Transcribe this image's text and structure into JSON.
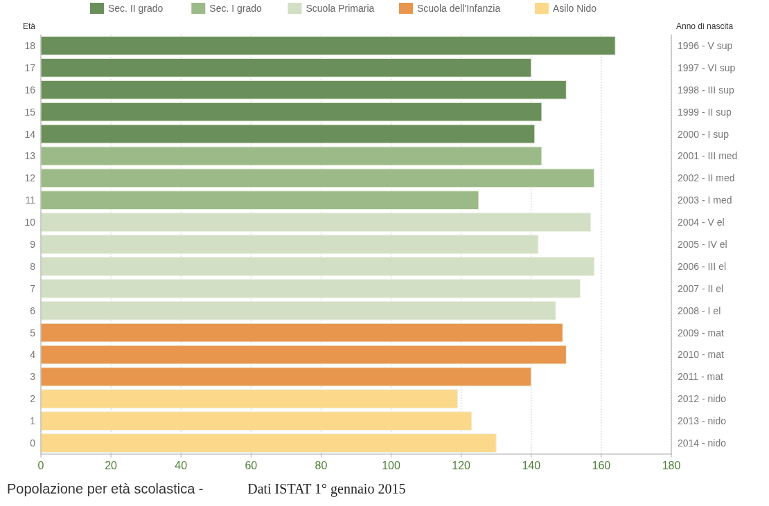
{
  "chart_data": {
    "type": "bar",
    "orientation": "horizontal",
    "title": "Popolazione per età scolastica -",
    "ylabel": "Età",
    "y2label": "Anno di nascita",
    "categories": [
      "18",
      "17",
      "16",
      "15",
      "14",
      "13",
      "12",
      "11",
      "10",
      "9",
      "8",
      "7",
      "6",
      "5",
      "4",
      "3",
      "2",
      "1",
      "0"
    ],
    "y2_categories": [
      "1996 - V sup",
      "1997 - VI sup",
      "1998 - III sup",
      "1999 - II sup",
      "2000 - I sup",
      "2001 - III med",
      "2002 - II med",
      "2003 - I med",
      "2004 - V el",
      "2005 - IV el",
      "2006 - III el",
      "2007 - II el",
      "2008 - I el",
      "2009 - mat",
      "2010 - mat",
      "2011 - mat",
      "2012 - nido",
      "2013 - nido",
      "2014 - nido"
    ],
    "series": [
      {
        "name": "Sec. II grado",
        "color": "#6b8f5a",
        "values": [
          164,
          140,
          150,
          143,
          141,
          null,
          null,
          null,
          null,
          null,
          null,
          null,
          null,
          null,
          null,
          null,
          null,
          null,
          null
        ]
      },
      {
        "name": "Sec. I grado",
        "color": "#9cba88",
        "values": [
          null,
          null,
          null,
          null,
          null,
          143,
          158,
          125,
          null,
          null,
          null,
          null,
          null,
          null,
          null,
          null,
          null,
          null,
          null
        ]
      },
      {
        "name": "Scuola Primaria",
        "color": "#d2dfc5",
        "values": [
          null,
          null,
          null,
          null,
          null,
          null,
          null,
          null,
          157,
          142,
          158,
          154,
          147,
          null,
          null,
          null,
          null,
          null,
          null
        ]
      },
      {
        "name": "Scuola dell'Infanzia",
        "color": "#e8964d",
        "values": [
          null,
          null,
          null,
          null,
          null,
          null,
          null,
          null,
          null,
          null,
          null,
          null,
          null,
          149,
          150,
          140,
          null,
          null,
          null
        ]
      },
      {
        "name": "Asilo Nido",
        "color": "#fcd88a",
        "values": [
          null,
          null,
          null,
          null,
          null,
          null,
          null,
          null,
          null,
          null,
          null,
          null,
          null,
          null,
          null,
          null,
          119,
          123,
          130
        ]
      }
    ],
    "xlim": [
      0,
      180
    ],
    "xticks": [
      0,
      20,
      40,
      60,
      80,
      100,
      120,
      140,
      160,
      180
    ],
    "grid": "x",
    "legend": "top",
    "annotations": [
      "Dati ISTAT 1° gennaio 2015"
    ]
  }
}
